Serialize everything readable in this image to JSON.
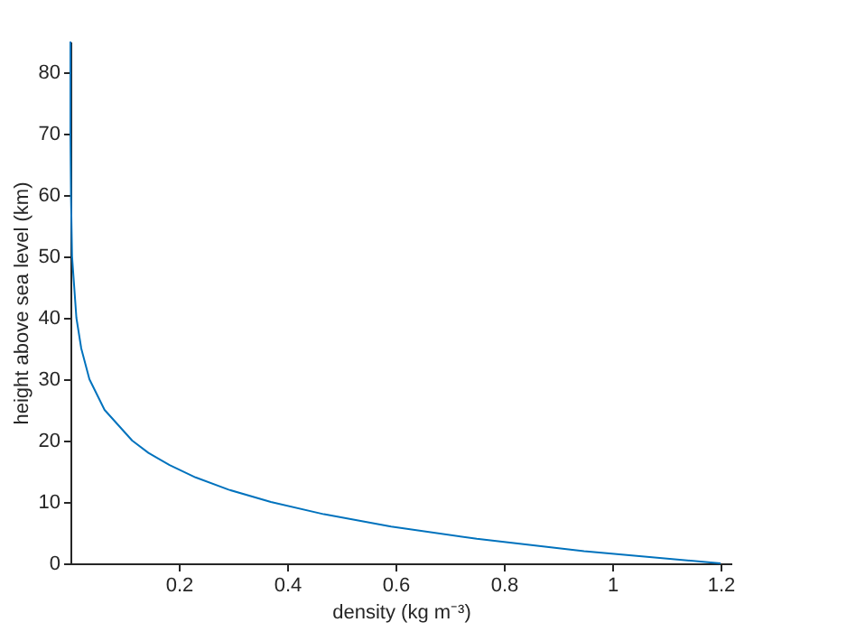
{
  "chart_data": {
    "type": "line",
    "xlabel": "density (kg m⁻³)",
    "ylabel": "height above sea level (km)",
    "x": [
      1.2,
      0.948,
      0.75,
      0.592,
      0.468,
      0.37,
      0.292,
      0.231,
      0.183,
      0.144,
      0.114,
      0.063,
      0.035,
      0.02,
      0.011,
      0.003,
      0.001,
      0,
      0
    ],
    "series": [
      {
        "color": "#0072bd",
        "values": [
          0,
          2,
          4,
          6,
          8,
          10,
          12,
          14,
          16,
          18,
          20,
          25,
          30,
          35,
          40,
          50,
          60,
          70,
          85
        ]
      }
    ],
    "xlim": [
      0,
      1.22
    ],
    "ylim": [
      0,
      85
    ],
    "xticks": [
      0.2,
      0.4,
      0.6,
      0.8,
      1,
      1.2
    ],
    "yticks": [
      0,
      10,
      20,
      30,
      40,
      50,
      60,
      70,
      80
    ],
    "grid": false,
    "line_style": "solid",
    "marker": "none"
  }
}
